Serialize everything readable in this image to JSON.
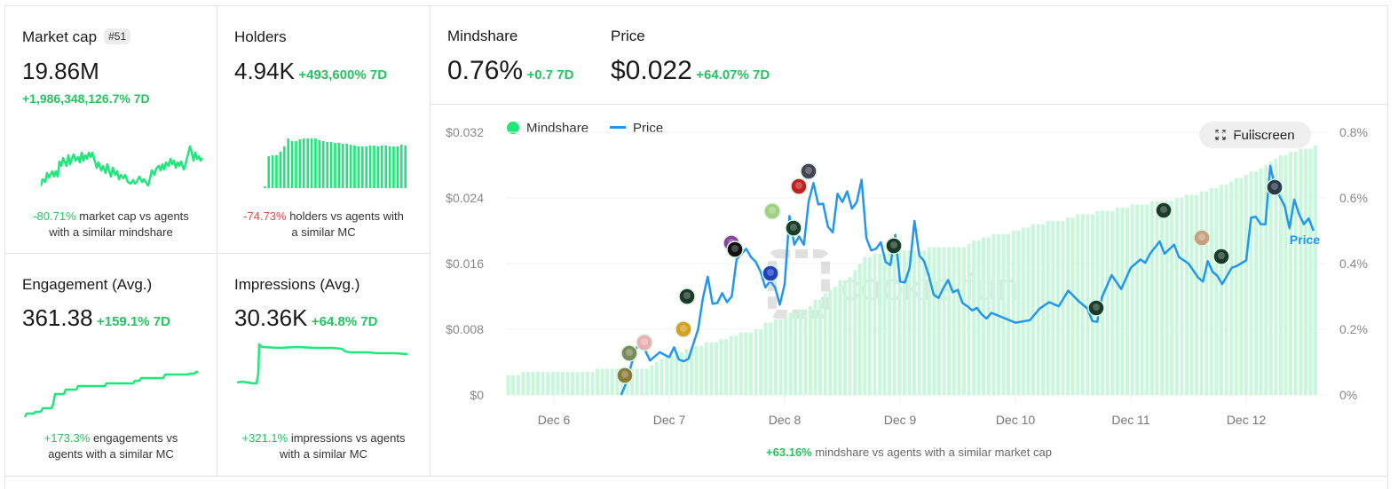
{
  "colors": {
    "accent_green": "#22c55e",
    "bar_green": "#c8f7dc",
    "line_blue": "#2196f3",
    "negative_red": "#ef4444",
    "sparkline_green": "#1ee87a"
  },
  "watermark": "cookie.fun",
  "market_cap": {
    "title": "Market cap",
    "rank_badge": "#51",
    "value": "19.86M",
    "change": "+1,986,348,126.7% 7D",
    "compare_value": "-80.71%",
    "compare_text": " market cap vs agents",
    "compare_text2": "with a similar mindshare"
  },
  "holders": {
    "title": "Holders",
    "value": "4.94K",
    "change": "+493,600% 7D",
    "compare_value": "-74.73%",
    "compare_text": " holders vs agents with",
    "compare_text2": "a similar MC"
  },
  "engagement": {
    "title": "Engagement (Avg.)",
    "value": "361.38",
    "change": "+159.1% 7D",
    "compare_value": "+173.3%",
    "compare_text": " engagements vs",
    "compare_text2": "agents with a similar MC"
  },
  "impressions": {
    "title": "Impressions (Avg.)",
    "value": "30.36K",
    "change": "+64.8% 7D",
    "compare_value": "+321.1%",
    "compare_text": " impressions vs agents",
    "compare_text2": "with a similar MC"
  },
  "mindshare": {
    "title": "Mindshare",
    "value": "0.76%",
    "change": "+0.7 7D"
  },
  "price": {
    "title": "Price",
    "value": "$0.022",
    "change": "+64.07% 7D"
  },
  "chart": {
    "legend": [
      {
        "label": "Mindshare",
        "icon": "circle-dot"
      },
      {
        "label": "Price",
        "icon": "line"
      }
    ],
    "fullscreen_label": "Fullscreen",
    "fullscreen_icon": "expand-icon",
    "price_line_label": "Price",
    "footer_value": "+63.16%",
    "footer_text": " mindshare vs agents with a similar market cap"
  },
  "chart_data": {
    "type": "bar+line",
    "title": "Mindshare and Price",
    "x_ticks": [
      "Dec 6",
      "Dec 7",
      "Dec 8",
      "Dec 9",
      "Dec 10",
      "Dec 11",
      "Dec 12"
    ],
    "y_left": {
      "label": "Price",
      "ticks": [
        "$0",
        "$0.008",
        "$0.016",
        "$0.024",
        "$0.032"
      ],
      "range": [
        0,
        0.032
      ]
    },
    "y_right": {
      "label": "Mindshare",
      "ticks": [
        "0%",
        "0.2%",
        "0.4%",
        "0.6%",
        "0.8%"
      ],
      "range": [
        0,
        0.8
      ]
    },
    "legend_position": "top-left",
    "grid": true,
    "series": [
      {
        "name": "Mindshare",
        "type": "bar",
        "unit": "%",
        "x_start": "Dec 5 ~14:00",
        "interval": "1h",
        "values": [
          0.06,
          0.06,
          0.06,
          0.07,
          0.07,
          0.07,
          0.07,
          0.07,
          0.07,
          0.07,
          0.07,
          0.07,
          0.07,
          0.07,
          0.07,
          0.07,
          0.07,
          0.07,
          0.08,
          0.08,
          0.08,
          0.08,
          0.08,
          0.08,
          0.08,
          0.08,
          0.08,
          0.08,
          0.08,
          0.09,
          0.1,
          0.11,
          0.12,
          0.12,
          0.13,
          0.13,
          0.14,
          0.14,
          0.15,
          0.15,
          0.16,
          0.16,
          0.16,
          0.17,
          0.17,
          0.18,
          0.18,
          0.19,
          0.19,
          0.19,
          0.2,
          0.2,
          0.22,
          0.22,
          0.23,
          0.23,
          0.24,
          0.25,
          0.25,
          0.26,
          0.26,
          0.27,
          0.29,
          0.29,
          0.31,
          0.32,
          0.33,
          0.35,
          0.35,
          0.36,
          0.38,
          0.4,
          0.42,
          0.42,
          0.43,
          0.43,
          0.43,
          0.44,
          0.44,
          0.44,
          0.44,
          0.44,
          0.44,
          0.44,
          0.44,
          0.45,
          0.45,
          0.45,
          0.45,
          0.45,
          0.45,
          0.45,
          0.45,
          0.46,
          0.47,
          0.47,
          0.48,
          0.48,
          0.49,
          0.49,
          0.49,
          0.49,
          0.5,
          0.5,
          0.51,
          0.51,
          0.52,
          0.52,
          0.52,
          0.53,
          0.53,
          0.53,
          0.53,
          0.54,
          0.54,
          0.55,
          0.55,
          0.55,
          0.55,
          0.56,
          0.56,
          0.56,
          0.56,
          0.57,
          0.57,
          0.57,
          0.58,
          0.58,
          0.58,
          0.58,
          0.59,
          0.59,
          0.59,
          0.59,
          0.59,
          0.6,
          0.6,
          0.61,
          0.61,
          0.61,
          0.62,
          0.62,
          0.63,
          0.63,
          0.64,
          0.64,
          0.65,
          0.66,
          0.66,
          0.67,
          0.68,
          0.68,
          0.69,
          0.7,
          0.71,
          0.72,
          0.73,
          0.73,
          0.74,
          0.74,
          0.75,
          0.75,
          0.75,
          0.76
        ]
      },
      {
        "name": "Price",
        "type": "line",
        "unit": "$",
        "points": [
          [
            "Dec 6 14:00",
            0.0
          ],
          [
            "Dec 6 15:00",
            0.0014
          ],
          [
            "Dec 6 17:00",
            0.0055
          ],
          [
            "Dec 6 18:00",
            0.0066
          ],
          [
            "Dec 6 20:00",
            0.0042
          ],
          [
            "Dec 6 22:00",
            0.0052
          ],
          [
            "Dec 7 00:00",
            0.0046
          ],
          [
            "Dec 7 01:00",
            0.0058
          ],
          [
            "Dec 7 02:00",
            0.0043
          ],
          [
            "Dec 7 03:00",
            0.0041
          ],
          [
            "Dec 7 04:00",
            0.0044
          ],
          [
            "Dec 7 06:00",
            0.008
          ],
          [
            "Dec 7 07:00",
            0.0118
          ],
          [
            "Dec 7 08:00",
            0.0144
          ],
          [
            "Dec 7 09:00",
            0.0111
          ],
          [
            "Dec 7 10:00",
            0.0112
          ],
          [
            "Dec 7 11:00",
            0.0124
          ],
          [
            "Dec 7 12:00",
            0.0113
          ],
          [
            "Dec 7 13:00",
            0.012
          ],
          [
            "Dec 7 14:00",
            0.0165
          ],
          [
            "Dec 7 15:00",
            0.0172
          ],
          [
            "Dec 7 16:00",
            0.0178
          ],
          [
            "Dec 7 17:00",
            0.0168
          ],
          [
            "Dec 7 18:00",
            0.0162
          ],
          [
            "Dec 7 19:00",
            0.015
          ],
          [
            "Dec 7 20:00",
            0.0131
          ],
          [
            "Dec 7 21:00",
            0.0139
          ],
          [
            "Dec 7 22:00",
            0.0131
          ],
          [
            "Dec 7 23:00",
            0.011
          ],
          [
            "Dec 8 00:00",
            0.0135
          ],
          [
            "Dec 8 01:00",
            0.0218
          ],
          [
            "Dec 8 02:00",
            0.0183
          ],
          [
            "Dec 8 03:00",
            0.0193
          ],
          [
            "Dec 8 04:00",
            0.0183
          ],
          [
            "Dec 8 05:00",
            0.0236
          ],
          [
            "Dec 8 06:00",
            0.0258
          ],
          [
            "Dec 8 07:00",
            0.0232
          ],
          [
            "Dec 8 08:00",
            0.0233
          ],
          [
            "Dec 8 09:00",
            0.0205
          ],
          [
            "Dec 8 10:00",
            0.0198
          ],
          [
            "Dec 8 11:00",
            0.0245
          ],
          [
            "Dec 8 12:00",
            0.0235
          ],
          [
            "Dec 8 13:00",
            0.0248
          ],
          [
            "Dec 8 14:00",
            0.0227
          ],
          [
            "Dec 8 15:00",
            0.0235
          ],
          [
            "Dec 8 16:00",
            0.0262
          ],
          [
            "Dec 8 17:00",
            0.0191
          ],
          [
            "Dec 8 18:00",
            0.0176
          ],
          [
            "Dec 8 19:00",
            0.0178
          ],
          [
            "Dec 8 20:00",
            0.0186
          ],
          [
            "Dec 8 21:00",
            0.0162
          ],
          [
            "Dec 8 22:00",
            0.0158
          ],
          [
            "Dec 8 23:00",
            0.0195
          ],
          [
            "Dec 9 00:00",
            0.0138
          ],
          [
            "Dec 9 01:00",
            0.0137
          ],
          [
            "Dec 9 02:00",
            0.0155
          ],
          [
            "Dec 9 03:00",
            0.0212
          ],
          [
            "Dec 9 04:00",
            0.017
          ],
          [
            "Dec 9 05:00",
            0.0163
          ],
          [
            "Dec 9 06:00",
            0.0145
          ],
          [
            "Dec 9 07:00",
            0.0122
          ],
          [
            "Dec 9 08:00",
            0.0118
          ],
          [
            "Dec 9 09:00",
            0.013
          ],
          [
            "Dec 9 10:00",
            0.014
          ],
          [
            "Dec 9 11:00",
            0.0125
          ],
          [
            "Dec 9 12:00",
            0.0128
          ],
          [
            "Dec 9 13:00",
            0.0112
          ],
          [
            "Dec 9 14:00",
            0.0108
          ],
          [
            "Dec 9 15:00",
            0.0103
          ],
          [
            "Dec 9 16:00",
            0.0106
          ],
          [
            "Dec 9 17:00",
            0.0098
          ],
          [
            "Dec 9 18:00",
            0.0093
          ],
          [
            "Dec 9 19:00",
            0.01
          ],
          [
            "Dec 10 00:00",
            0.0088
          ],
          [
            "Dec 10 03:00",
            0.0091
          ],
          [
            "Dec 10 05:00",
            0.0105
          ],
          [
            "Dec 10 07:00",
            0.0113
          ],
          [
            "Dec 10 09:00",
            0.0108
          ],
          [
            "Dec 10 11:00",
            0.0127
          ],
          [
            "Dec 10 13:00",
            0.0115
          ],
          [
            "Dec 10 15:00",
            0.0105
          ],
          [
            "Dec 10 16:00",
            0.009
          ],
          [
            "Dec 10 17:00",
            0.0089
          ],
          [
            "Dec 10 18:00",
            0.0119
          ],
          [
            "Dec 10 20:00",
            0.0146
          ],
          [
            "Dec 10 22:00",
            0.0129
          ],
          [
            "Dec 11 00:00",
            0.0155
          ],
          [
            "Dec 11 02:00",
            0.0165
          ],
          [
            "Dec 11 03:00",
            0.0161
          ],
          [
            "Dec 11 04:00",
            0.0172
          ],
          [
            "Dec 11 06:00",
            0.0187
          ],
          [
            "Dec 11 07:00",
            0.0172
          ],
          [
            "Dec 11 09:00",
            0.0183
          ],
          [
            "Dec 11 10:00",
            0.0168
          ],
          [
            "Dec 11 12:00",
            0.016
          ],
          [
            "Dec 11 14:00",
            0.0143
          ],
          [
            "Dec 11 15:00",
            0.0138
          ],
          [
            "Dec 11 16:00",
            0.0163
          ],
          [
            "Dec 11 17:00",
            0.015
          ],
          [
            "Dec 11 18:00",
            0.0145
          ],
          [
            "Dec 11 19:00",
            0.0135
          ],
          [
            "Dec 11 21:00",
            0.0155
          ],
          [
            "Dec 11 22:00",
            0.0157
          ],
          [
            "Dec 12 00:00",
            0.0164
          ],
          [
            "Dec 12 01:00",
            0.0216
          ],
          [
            "Dec 12 02:00",
            0.0217
          ],
          [
            "Dec 12 03:00",
            0.0208
          ],
          [
            "Dec 12 04:00",
            0.0208
          ],
          [
            "Dec 12 05:00",
            0.0279
          ],
          [
            "Dec 12 06:00",
            0.0253
          ],
          [
            "Dec 12 08:00",
            0.023
          ],
          [
            "Dec 12 09:00",
            0.0203
          ],
          [
            "Dec 12 10:00",
            0.0238
          ],
          [
            "Dec 12 11:00",
            0.022
          ],
          [
            "Dec 12 12:00",
            0.0208
          ],
          [
            "Dec 12 13:00",
            0.0215
          ],
          [
            "Dec 12 14:00",
            0.02
          ]
        ]
      }
    ],
    "annotations": [
      "Price (line end label)",
      "avatar markers on price line at tweet events (15)"
    ]
  }
}
